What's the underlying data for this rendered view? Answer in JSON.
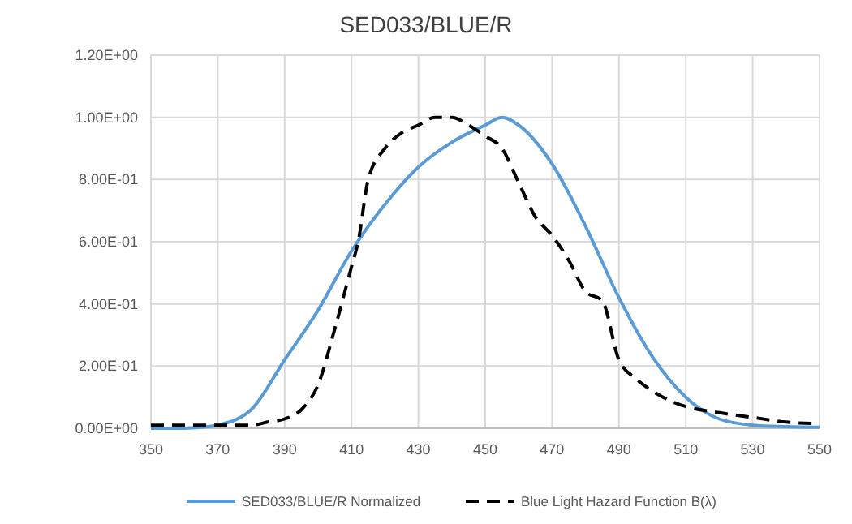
{
  "chart_data": {
    "type": "line",
    "title": "SED033/BLUE/R",
    "xlim": [
      350,
      550
    ],
    "xticks": [
      350,
      370,
      390,
      410,
      430,
      450,
      470,
      490,
      510,
      530,
      550
    ],
    "ylim": [
      0,
      1.2
    ],
    "yticks": [
      {
        "value": 0,
        "label": "0.00E+00"
      },
      {
        "value": 0.2,
        "label": "2.00E-01"
      },
      {
        "value": 0.4,
        "label": "4.00E-01"
      },
      {
        "value": 0.6,
        "label": "6.00E-01"
      },
      {
        "value": 0.8,
        "label": "8.00E-01"
      },
      {
        "value": 1.0,
        "label": "1.00E+00"
      },
      {
        "value": 1.2,
        "label": "1.20E+00"
      }
    ],
    "grid": true,
    "legend": "bottom",
    "marker": "none",
    "series": [
      {
        "name": "SED033/BLUE/R Normalized",
        "color": "#5b9bd5",
        "line_style": "solid",
        "x": [
          350,
          360,
          365,
          370,
          380,
          390,
          400,
          410,
          420,
          430,
          440,
          450,
          455,
          460,
          470,
          480,
          490,
          500,
          510,
          520,
          530,
          540,
          550
        ],
        "values": [
          0,
          0,
          0.003,
          0.01,
          0.06,
          0.22,
          0.38,
          0.57,
          0.72,
          0.84,
          0.92,
          0.975,
          1.0,
          0.975,
          0.85,
          0.65,
          0.42,
          0.23,
          0.1,
          0.03,
          0.01,
          0.005,
          0.003
        ]
      },
      {
        "name": "Blue Light Hazard Function B(λ)",
        "color": "#000000",
        "line_style": "dashed",
        "x": [
          350,
          360,
          370,
          380,
          385,
          390,
          395,
          400,
          405,
          410,
          412,
          415,
          420,
          425,
          430,
          435,
          440,
          445,
          450,
          455,
          460,
          465,
          470,
          475,
          480,
          485,
          490,
          495,
          500,
          505,
          510,
          520,
          530,
          540,
          550
        ],
        "values": [
          0.01,
          0.01,
          0.01,
          0.01,
          0.02,
          0.03,
          0.06,
          0.14,
          0.32,
          0.52,
          0.6,
          0.8,
          0.9,
          0.95,
          0.975,
          1.0,
          1.0,
          0.975,
          0.94,
          0.9,
          0.79,
          0.68,
          0.62,
          0.54,
          0.44,
          0.41,
          0.22,
          0.16,
          0.12,
          0.09,
          0.07,
          0.05,
          0.035,
          0.02,
          0.015
        ]
      }
    ]
  }
}
